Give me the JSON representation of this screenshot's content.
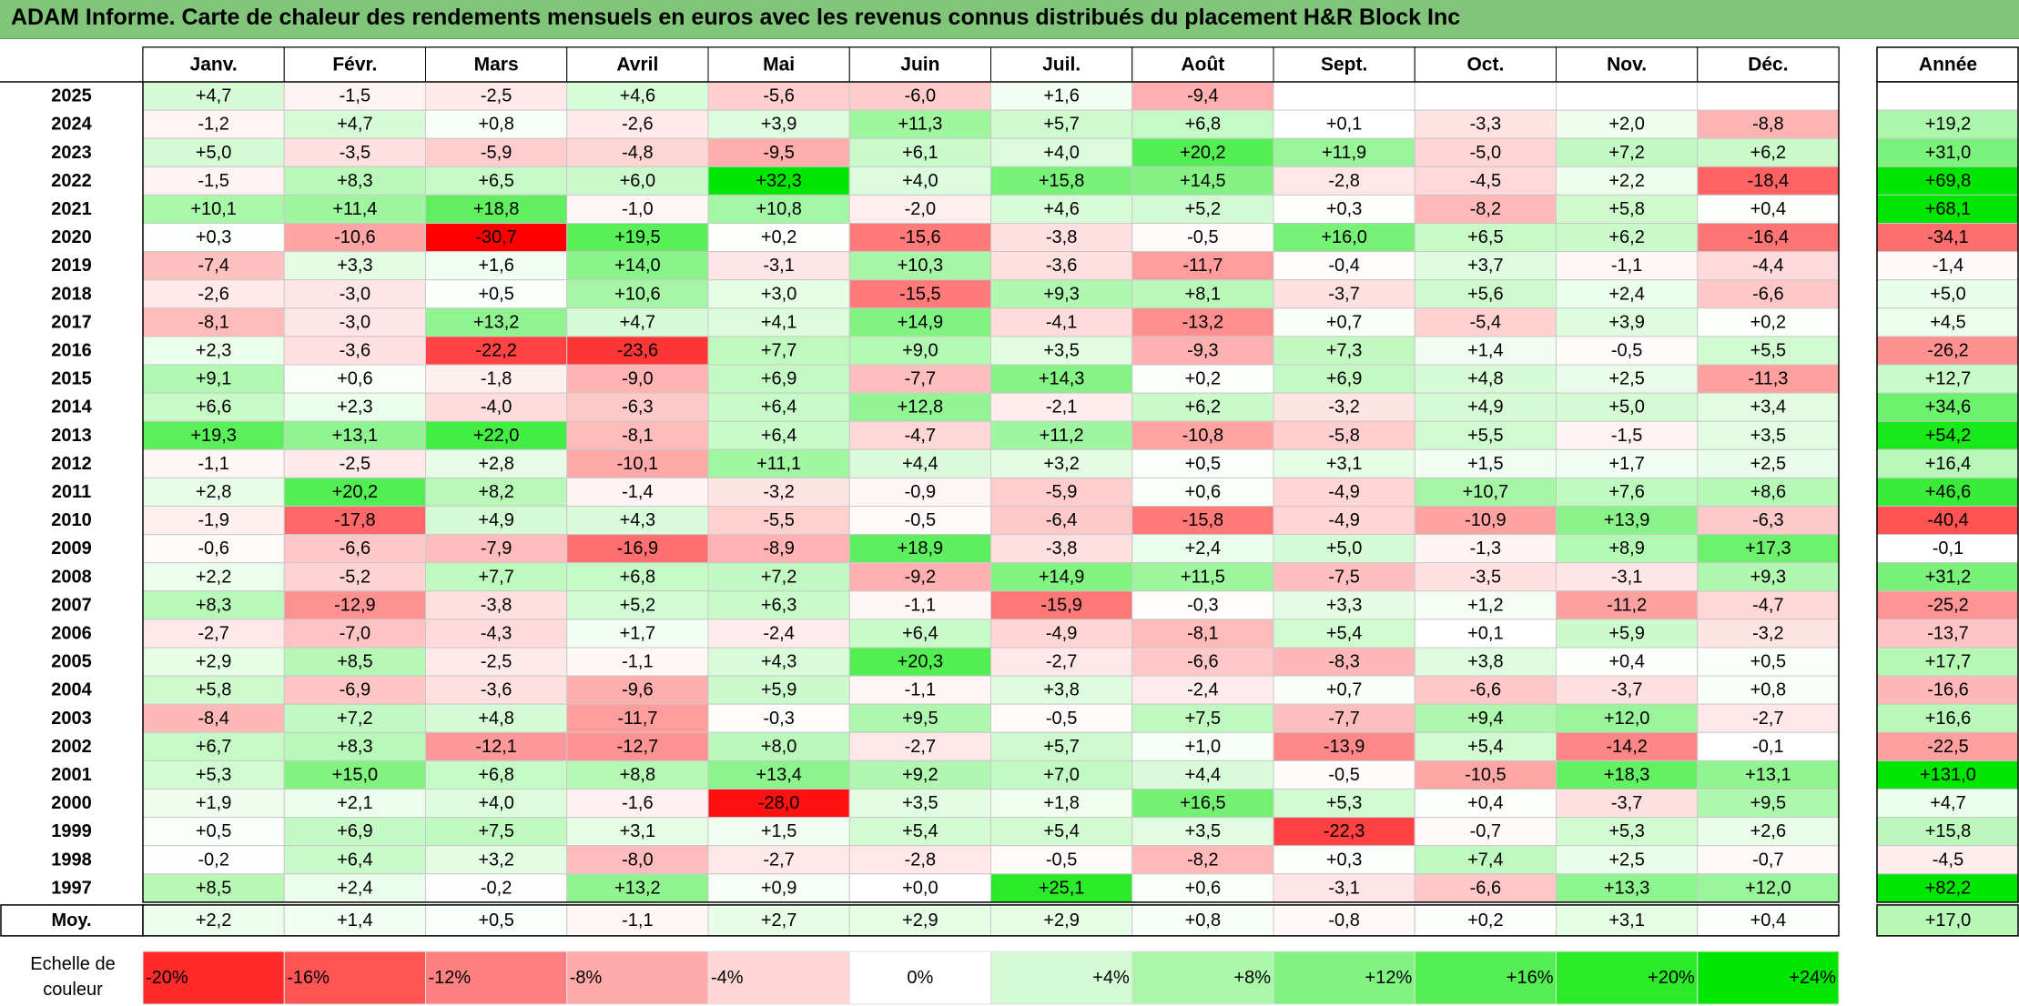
{
  "title": "ADAM Informe. Carte de chaleur des rendements mensuels en euros avec les revenus connus distribués du placement H&R Block Inc",
  "colors": {
    "negative_max": "#ff0000",
    "neutral": "#ffffff",
    "positive_max": "#00e600",
    "title_bg": "#80c57a"
  },
  "chart_data": {
    "type": "heatmap",
    "title": "ADAM Informe. Carte de chaleur des rendements mensuels en euros avec les revenus connus distribués du placement H&R Block Inc",
    "months": [
      "Janv.",
      "Févr.",
      "Mars",
      "Avril",
      "Mai",
      "Juin",
      "Juil.",
      "Août",
      "Sept.",
      "Oct.",
      "Nov.",
      "Déc."
    ],
    "annual_header": "Année",
    "average_label": "Moy.",
    "rows": [
      {
        "year": "2025",
        "values": [
          "+4,7",
          "-1,5",
          "-2,5",
          "+4,6",
          "-5,6",
          "-6,0",
          "+1,6",
          "-9,4",
          "",
          "",
          "",
          ""
        ],
        "annual": ""
      },
      {
        "year": "2024",
        "values": [
          "-1,2",
          "+4,7",
          "+0,8",
          "-2,6",
          "+3,9",
          "+11,3",
          "+5,7",
          "+6,8",
          "+0,1",
          "-3,3",
          "+2,0",
          "-8,8"
        ],
        "annual": "+19,2"
      },
      {
        "year": "2023",
        "values": [
          "+5,0",
          "-3,5",
          "-5,9",
          "-4,8",
          "-9,5",
          "+6,1",
          "+4,0",
          "+20,2",
          "+11,9",
          "-5,0",
          "+7,2",
          "+6,2"
        ],
        "annual": "+31,0"
      },
      {
        "year": "2022",
        "values": [
          "-1,5",
          "+8,3",
          "+6,5",
          "+6,0",
          "+32,3",
          "+4,0",
          "+15,8",
          "+14,5",
          "-2,8",
          "-4,5",
          "+2,2",
          "-18,4"
        ],
        "annual": "+69,8"
      },
      {
        "year": "2021",
        "values": [
          "+10,1",
          "+11,4",
          "+18,8",
          "-1,0",
          "+10,8",
          "-2,0",
          "+4,6",
          "+5,2",
          "+0,3",
          "-8,2",
          "+5,8",
          "+0,4"
        ],
        "annual": "+68,1"
      },
      {
        "year": "2020",
        "values": [
          "+0,3",
          "-10,6",
          "-30,7",
          "+19,5",
          "+0,2",
          "-15,6",
          "-3,8",
          "-0,5",
          "+16,0",
          "+6,5",
          "+6,2",
          "-16,4"
        ],
        "annual": "-34,1"
      },
      {
        "year": "2019",
        "values": [
          "-7,4",
          "+3,3",
          "+1,6",
          "+14,0",
          "-3,1",
          "+10,3",
          "-3,6",
          "-11,7",
          "-0,4",
          "+3,7",
          "-1,1",
          "-4,4"
        ],
        "annual": "-1,4"
      },
      {
        "year": "2018",
        "values": [
          "-2,6",
          "-3,0",
          "+0,5",
          "+10,6",
          "+3,0",
          "-15,5",
          "+9,3",
          "+8,1",
          "-3,7",
          "+5,6",
          "+2,4",
          "-6,6"
        ],
        "annual": "+5,0"
      },
      {
        "year": "2017",
        "values": [
          "-8,1",
          "-3,0",
          "+13,2",
          "+4,7",
          "+4,1",
          "+14,9",
          "-4,1",
          "-13,2",
          "+0,7",
          "-5,4",
          "+3,9",
          "+0,2"
        ],
        "annual": "+4,5"
      },
      {
        "year": "2016",
        "values": [
          "+2,3",
          "-3,6",
          "-22,2",
          "-23,6",
          "+7,7",
          "+9,0",
          "+3,5",
          "-9,3",
          "+7,3",
          "+1,4",
          "-0,5",
          "+5,5"
        ],
        "annual": "-26,2"
      },
      {
        "year": "2015",
        "values": [
          "+9,1",
          "+0,6",
          "-1,8",
          "-9,0",
          "+6,9",
          "-7,7",
          "+14,3",
          "+0,2",
          "+6,9",
          "+4,8",
          "+2,5",
          "-11,3"
        ],
        "annual": "+12,7"
      },
      {
        "year": "2014",
        "values": [
          "+6,6",
          "+2,3",
          "-4,0",
          "-6,3",
          "+6,4",
          "+12,8",
          "-2,1",
          "+6,2",
          "-3,2",
          "+4,9",
          "+5,0",
          "+3,4"
        ],
        "annual": "+34,6"
      },
      {
        "year": "2013",
        "values": [
          "+19,3",
          "+13,1",
          "+22,0",
          "-8,1",
          "+6,4",
          "-4,7",
          "+11,2",
          "-10,8",
          "-5,8",
          "+5,5",
          "-1,5",
          "+3,5"
        ],
        "annual": "+54,2"
      },
      {
        "year": "2012",
        "values": [
          "-1,1",
          "-2,5",
          "+2,8",
          "-10,1",
          "+11,1",
          "+4,4",
          "+3,2",
          "+0,5",
          "+3,1",
          "+1,5",
          "+1,7",
          "+2,5"
        ],
        "annual": "+16,4"
      },
      {
        "year": "2011",
        "values": [
          "+2,8",
          "+20,2",
          "+8,2",
          "-1,4",
          "-3,2",
          "-0,9",
          "-5,9",
          "+0,6",
          "-4,9",
          "+10,7",
          "+7,6",
          "+8,6"
        ],
        "annual": "+46,6"
      },
      {
        "year": "2010",
        "values": [
          "-1,9",
          "-17,8",
          "+4,9",
          "+4,3",
          "-5,5",
          "-0,5",
          "-6,4",
          "-15,8",
          "-4,9",
          "-10,9",
          "+13,9",
          "-6,3"
        ],
        "annual": "-40,4"
      },
      {
        "year": "2009",
        "values": [
          "-0,6",
          "-6,6",
          "-7,9",
          "-16,9",
          "-8,9",
          "+18,9",
          "-3,8",
          "+2,4",
          "+5,0",
          "-1,3",
          "+8,9",
          "+17,3"
        ],
        "annual": "-0,1"
      },
      {
        "year": "2008",
        "values": [
          "+2,2",
          "-5,2",
          "+7,7",
          "+6,8",
          "+7,2",
          "-9,2",
          "+14,9",
          "+11,5",
          "-7,5",
          "-3,5",
          "-3,1",
          "+9,3"
        ],
        "annual": "+31,2"
      },
      {
        "year": "2007",
        "values": [
          "+8,3",
          "-12,9",
          "-3,8",
          "+5,2",
          "+6,3",
          "-1,1",
          "-15,9",
          "-0,3",
          "+3,3",
          "+1,2",
          "-11,2",
          "-4,7"
        ],
        "annual": "-25,2"
      },
      {
        "year": "2006",
        "values": [
          "-2,7",
          "-7,0",
          "-4,3",
          "+1,7",
          "-2,4",
          "+6,4",
          "-4,9",
          "-8,1",
          "+5,4",
          "+0,1",
          "+5,9",
          "-3,2"
        ],
        "annual": "-13,7"
      },
      {
        "year": "2005",
        "values": [
          "+2,9",
          "+8,5",
          "-2,5",
          "-1,1",
          "+4,3",
          "+20,3",
          "-2,7",
          "-6,6",
          "-8,3",
          "+3,8",
          "+0,4",
          "+0,5"
        ],
        "annual": "+17,7"
      },
      {
        "year": "2004",
        "values": [
          "+5,8",
          "-6,9",
          "-3,6",
          "-9,6",
          "+5,9",
          "-1,1",
          "+3,8",
          "-2,4",
          "+0,7",
          "-6,6",
          "-3,7",
          "+0,8"
        ],
        "annual": "-16,6"
      },
      {
        "year": "2003",
        "values": [
          "-8,4",
          "+7,2",
          "+4,8",
          "-11,7",
          "-0,3",
          "+9,5",
          "-0,5",
          "+7,5",
          "-7,7",
          "+9,4",
          "+12,0",
          "-2,7"
        ],
        "annual": "+16,6"
      },
      {
        "year": "2002",
        "values": [
          "+6,7",
          "+8,3",
          "-12,1",
          "-12,7",
          "+8,0",
          "-2,7",
          "+5,7",
          "+1,0",
          "-13,9",
          "+5,4",
          "-14,2",
          "-0,1"
        ],
        "annual": "-22,5"
      },
      {
        "year": "2001",
        "values": [
          "+5,3",
          "+15,0",
          "+6,8",
          "+8,8",
          "+13,4",
          "+9,2",
          "+7,0",
          "+4,4",
          "-0,5",
          "-10,5",
          "+18,3",
          "+13,1"
        ],
        "annual": "+131,0"
      },
      {
        "year": "2000",
        "values": [
          "+1,9",
          "+2,1",
          "+4,0",
          "-1,6",
          "-28,0",
          "+3,5",
          "+1,8",
          "+16,5",
          "+5,3",
          "+0,4",
          "-3,7",
          "+9,5"
        ],
        "annual": "+4,7"
      },
      {
        "year": "1999",
        "values": [
          "+0,5",
          "+6,9",
          "+7,5",
          "+3,1",
          "+1,5",
          "+5,4",
          "+5,4",
          "+3,5",
          "-22,3",
          "-0,7",
          "+5,3",
          "+2,6"
        ],
        "annual": "+15,8"
      },
      {
        "year": "1998",
        "values": [
          "-0,2",
          "+6,4",
          "+3,2",
          "-8,0",
          "-2,7",
          "-2,8",
          "-0,5",
          "-8,2",
          "+0,3",
          "+7,4",
          "+2,5",
          "-0,7"
        ],
        "annual": "-4,5"
      },
      {
        "year": "1997",
        "values": [
          "+8,5",
          "+2,4",
          "-0,2",
          "+13,2",
          "+0,9",
          "+0,0",
          "+25,1",
          "+0,6",
          "-3,1",
          "-6,6",
          "+13,3",
          "+12,0"
        ],
        "annual": "+82,2"
      }
    ],
    "averages": [
      "+2,2",
      "+1,4",
      "+0,5",
      "-1,1",
      "+2,7",
      "+2,9",
      "+2,9",
      "+0,8",
      "-0,8",
      "+0,2",
      "+3,1",
      "+0,4"
    ],
    "average_annual": "+17,0",
    "scale": {
      "label_line1": "Echelle de",
      "label_line2": "couleur",
      "steps": [
        "-20%",
        "-16%",
        "-12%",
        "-8%",
        "-4%",
        "0%",
        "+4%",
        "+8%",
        "+12%",
        "+16%",
        "+20%",
        "+24%"
      ]
    }
  }
}
